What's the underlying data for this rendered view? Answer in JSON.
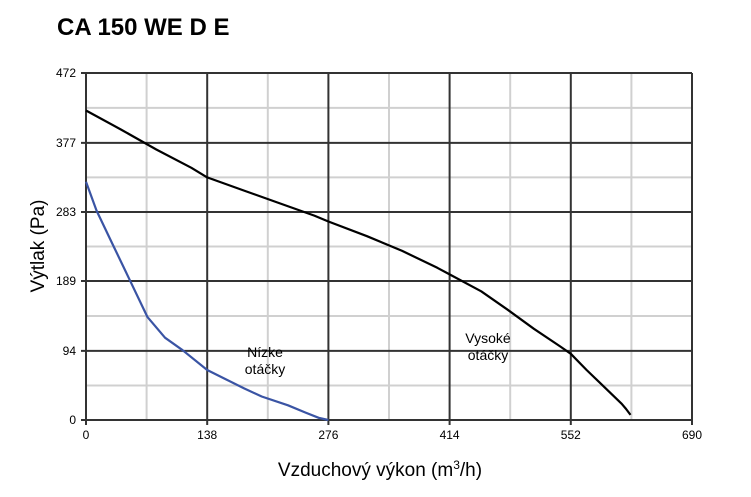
{
  "chart_data": {
    "type": "line",
    "title": "CA 150 WE D E",
    "xlabel_main": "Vzduchový výkon (m",
    "xlabel_sup": "3",
    "xlabel_end": "/h)",
    "ylabel": "Výtlak (Pa)",
    "xlim": [
      0,
      690
    ],
    "ylim": [
      0,
      472
    ],
    "x_ticks": [
      "0",
      "138",
      "276",
      "414",
      "552",
      "690"
    ],
    "y_ticks": [
      "472",
      "377",
      "283",
      "189",
      "94",
      "0"
    ],
    "x_tick_values": [
      0,
      138,
      276,
      414,
      552,
      690
    ],
    "y_tick_values": [
      472,
      377,
      283,
      189,
      94,
      0
    ],
    "x_minor_values": [
      69,
      207,
      345,
      483,
      621
    ],
    "y_minor_values": [
      424.5,
      330,
      236,
      141.5,
      47
    ],
    "grid": true,
    "series": [
      {
        "color": "#000000",
        "label_lines": [
          "Vysoké",
          "otáčky"
        ],
        "points": [
          [
            0,
            421
          ],
          [
            40,
            395
          ],
          [
            80,
            368
          ],
          [
            120,
            343
          ],
          [
            138,
            330
          ],
          [
            180,
            312
          ],
          [
            220,
            295
          ],
          [
            260,
            278
          ],
          [
            276,
            270
          ],
          [
            320,
            250
          ],
          [
            360,
            230
          ],
          [
            400,
            207
          ],
          [
            414,
            198
          ],
          [
            450,
            175
          ],
          [
            480,
            150
          ],
          [
            510,
            124
          ],
          [
            540,
            100
          ],
          [
            552,
            90
          ],
          [
            570,
            68
          ],
          [
            590,
            45
          ],
          [
            610,
            22
          ],
          [
            615,
            15
          ],
          [
            620,
            7
          ]
        ]
      },
      {
        "color": "#3a54a4",
        "label_lines": [
          "Nízke",
          "otáčky"
        ],
        "points": [
          [
            0,
            324
          ],
          [
            12,
            285
          ],
          [
            30,
            240
          ],
          [
            50,
            190
          ],
          [
            70,
            140
          ],
          [
            90,
            112
          ],
          [
            110,
            95
          ],
          [
            138,
            68
          ],
          [
            160,
            55
          ],
          [
            180,
            43
          ],
          [
            200,
            32
          ],
          [
            230,
            20
          ],
          [
            250,
            10
          ],
          [
            265,
            3
          ],
          [
            276,
            0
          ]
        ]
      }
    ]
  }
}
